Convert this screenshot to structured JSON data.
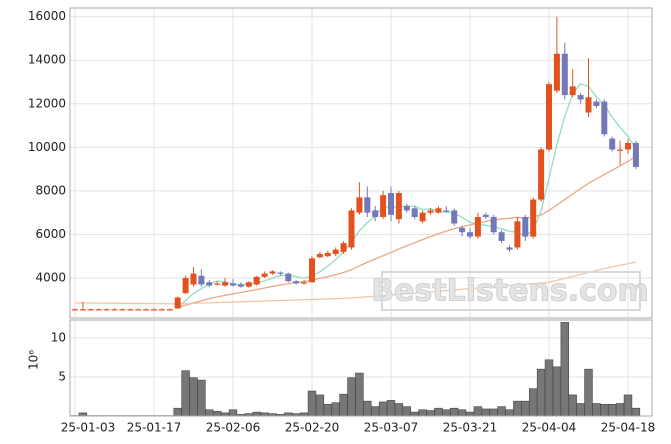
{
  "chart_data": {
    "type": "candlestick",
    "watermark": "BestListens.com",
    "categories": [
      "25-01-03",
      null,
      null,
      null,
      null,
      null,
      null,
      null,
      null,
      null,
      "25-01-17",
      null,
      null,
      null,
      null,
      null,
      null,
      null,
      null,
      null,
      "25-02-06",
      null,
      null,
      null,
      null,
      null,
      null,
      null,
      null,
      null,
      "25-02-20",
      null,
      null,
      null,
      null,
      null,
      null,
      null,
      null,
      null,
      "25-03-07",
      null,
      null,
      null,
      null,
      null,
      null,
      null,
      null,
      null,
      "25-03-21",
      null,
      null,
      null,
      null,
      null,
      null,
      null,
      null,
      null,
      "25-04-04",
      null,
      null,
      null,
      null,
      null,
      null,
      null,
      null,
      null,
      "25-04-18",
      null
    ],
    "open": [
      2560,
      2560,
      2560,
      2560,
      2560,
      2560,
      2560,
      2560,
      2560,
      2560,
      2560,
      2560,
      2560,
      2600,
      3300,
      3700,
      4100,
      3800,
      3700,
      3650,
      3750,
      3700,
      3600,
      3700,
      4050,
      4200,
      4250,
      4200,
      3850,
      3750,
      3800,
      4950,
      5000,
      5100,
      5200,
      5400,
      7000,
      7700,
      7100,
      6800,
      7900,
      6700,
      7300,
      7200,
      6600,
      7000,
      7000,
      7100,
      7100,
      6300,
      6100,
      5900,
      6900,
      6800,
      6100,
      5400,
      5400,
      6800,
      5900,
      7600,
      9900,
      12600,
      14300,
      12400,
      12400,
      11600,
      12100,
      12100,
      10400,
      9900,
      9900,
      10200
    ],
    "high": [
      2600,
      2900,
      2600,
      2600,
      2600,
      2600,
      2600,
      2600,
      2600,
      2600,
      2600,
      2600,
      2600,
      3150,
      4100,
      4500,
      4400,
      3900,
      3850,
      4000,
      3950,
      3800,
      3850,
      4100,
      4300,
      4350,
      4300,
      4250,
      3900,
      3900,
      5000,
      5200,
      5250,
      5400,
      5700,
      7200,
      8400,
      8200,
      7300,
      8000,
      8200,
      8000,
      7400,
      7300,
      7100,
      7200,
      7300,
      7300,
      7200,
      6400,
      6300,
      7000,
      7000,
      6900,
      6200,
      5500,
      6800,
      6900,
      7700,
      10000,
      13000,
      16000,
      14800,
      13600,
      12500,
      14100,
      12200,
      12200,
      10500,
      10300,
      10400,
      10300
    ],
    "low": [
      2530,
      2530,
      2530,
      2530,
      2530,
      2530,
      2530,
      2530,
      2530,
      2530,
      2530,
      2530,
      2530,
      2580,
      3250,
      3600,
      3600,
      3600,
      3650,
      3600,
      3600,
      3550,
      3550,
      3650,
      4000,
      4150,
      4100,
      3800,
      3700,
      3700,
      3800,
      4900,
      4950,
      5000,
      5100,
      5300,
      6900,
      6800,
      6600,
      6700,
      6600,
      6500,
      7000,
      6700,
      6500,
      6900,
      6950,
      7000,
      6400,
      5900,
      5800,
      5800,
      6700,
      6000,
      5600,
      5200,
      5300,
      5700,
      5800,
      7500,
      9800,
      12500,
      12200,
      12300,
      12000,
      11400,
      11800,
      10500,
      9800,
      9200,
      9700,
      9000
    ],
    "close": [
      2560,
      2560,
      2560,
      2560,
      2560,
      2560,
      2560,
      2560,
      2560,
      2560,
      2560,
      2560,
      2560,
      3100,
      4000,
      4200,
      3700,
      3650,
      3750,
      3800,
      3650,
      3600,
      3800,
      4050,
      4200,
      4300,
      4200,
      3850,
      3750,
      3800,
      4900,
      5100,
      5150,
      5300,
      5600,
      7100,
      7700,
      7000,
      6800,
      7800,
      6900,
      7900,
      7100,
      6800,
      7000,
      7100,
      7200,
      7050,
      6500,
      6100,
      5900,
      6800,
      6800,
      6100,
      5700,
      5300,
      6600,
      5900,
      7600,
      9900,
      12900,
      14300,
      12400,
      12800,
      12200,
      12300,
      11900,
      10600,
      9900,
      9900,
      10200,
      9100
    ],
    "up_color": "#e2521f",
    "down_color": "#7378b8",
    "series": [
      {
        "color": "#95dcc0",
        "values": [
          null,
          null,
          null,
          null,
          null,
          null,
          null,
          null,
          null,
          null,
          null,
          null,
          null,
          2668,
          2956,
          3284,
          3512,
          3730,
          3860,
          3820,
          3710,
          3690,
          3720,
          3780,
          3860,
          3990,
          4110,
          4120,
          4060,
          3980,
          4100,
          4280,
          4540,
          4850,
          5210,
          5650,
          6170,
          6540,
          6840,
          7280,
          7240,
          7280,
          7300,
          7300,
          7140,
          7180,
          7040,
          7030,
          6970,
          6790,
          6550,
          6470,
          6420,
          6340,
          6260,
          6140,
          6100,
          5920,
          6220,
          7060,
          8580,
          10120,
          11420,
          12460,
          12920,
          12800,
          12320,
          11960,
          11380,
          10920,
          10500,
          9940
        ]
      },
      {
        "color": "#e9a882",
        "values": [
          null,
          null,
          null,
          null,
          null,
          null,
          null,
          null,
          null,
          null,
          null,
          null,
          null,
          2650,
          2750,
          2850,
          2950,
          3050,
          3130,
          3200,
          3270,
          3330,
          3400,
          3470,
          3540,
          3610,
          3680,
          3740,
          3790,
          3830,
          3900,
          3980,
          4060,
          4150,
          4250,
          4380,
          4550,
          4720,
          4870,
          5020,
          5170,
          5330,
          5480,
          5620,
          5760,
          5900,
          6030,
          6150,
          6260,
          6350,
          6430,
          6520,
          6600,
          6660,
          6710,
          6740,
          6780,
          6760,
          6800,
          6900,
          7100,
          7350,
          7600,
          7850,
          8100,
          8350,
          8550,
          8750,
          8950,
          9150,
          9350,
          9600
        ]
      },
      {
        "color": "#f0c6a8",
        "values": [
          2850,
          2850,
          2850,
          2845,
          2840,
          2840,
          2835,
          2830,
          2830,
          2825,
          2820,
          2820,
          2815,
          2810,
          2820,
          2832,
          2844,
          2856,
          2868,
          2880,
          2892,
          2904,
          2916,
          2928,
          2940,
          2952,
          2964,
          2976,
          2988,
          3000,
          3012,
          3024,
          3036,
          3048,
          3060,
          3080,
          3108,
          3136,
          3164,
          3192,
          3220,
          3248,
          3276,
          3304,
          3332,
          3360,
          3388,
          3416,
          3450,
          3479,
          3508,
          3537,
          3566,
          3595,
          3624,
          3653,
          3682,
          3711,
          3740,
          3769,
          3800,
          3890,
          3980,
          4070,
          4160,
          4250,
          4350,
          4430,
          4510,
          4580,
          4650,
          4730
        ]
      }
    ],
    "ylim": [
      2160,
      16400
    ],
    "yticks": [
      4000,
      6000,
      8000,
      10000,
      12000,
      14000,
      16000
    ],
    "grid": true,
    "volume": {
      "axis_label": "10⁶",
      "color": "#777777",
      "values": [
        0.05,
        0.4,
        0.05,
        0.05,
        0.05,
        0.05,
        0.05,
        0.05,
        0.05,
        0.05,
        0.05,
        0.05,
        0.05,
        1.0,
        5.8,
        4.9,
        4.6,
        0.8,
        0.6,
        0.4,
        0.8,
        0.2,
        0.3,
        0.5,
        0.4,
        0.3,
        0.2,
        0.4,
        0.3,
        0.4,
        3.2,
        2.7,
        1.5,
        1.7,
        2.8,
        4.9,
        5.5,
        1.9,
        1.2,
        1.8,
        2.0,
        1.6,
        1.2,
        0.5,
        0.8,
        0.7,
        1.0,
        0.8,
        1.0,
        0.8,
        0.5,
        1.2,
        0.9,
        0.9,
        1.2,
        0.8,
        1.9,
        1.9,
        3.5,
        6.0,
        7.2,
        6.3,
        12.0,
        2.7,
        1.6,
        6.0,
        1.6,
        1.5,
        1.5,
        1.6,
        2.7,
        1.0
      ],
      "ylim": [
        0,
        12.3
      ],
      "yticks": [
        5,
        10
      ]
    }
  }
}
